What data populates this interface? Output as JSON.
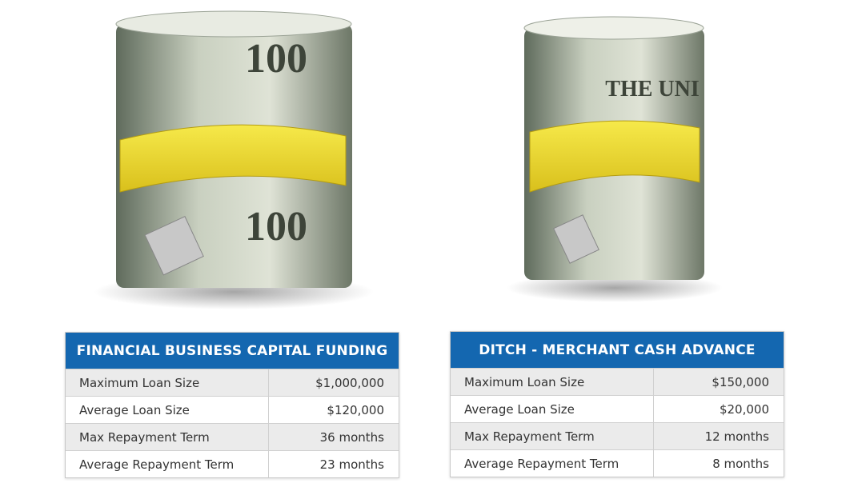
{
  "tables": [
    {
      "title": "FINANCIAL BUSINESS CAPITAL FUNDING",
      "rows": [
        [
          "Maximum Loan Size",
          "$1,000,000"
        ],
        [
          "Average Loan Size",
          "$120,000"
        ],
        [
          "Max Repayment Term",
          "36 months"
        ],
        [
          "Average Repayment Term",
          "23 months"
        ]
      ]
    },
    {
      "title": "DITCH - MERCHANT CASH ADVANCE",
      "rows": [
        [
          "Maximum Loan Size",
          "$150,000"
        ],
        [
          "Average Loan Size",
          "$20,000"
        ],
        [
          "Max Repayment Term",
          "12 months"
        ],
        [
          "Average Repayment Term",
          "8 months"
        ]
      ]
    }
  ]
}
